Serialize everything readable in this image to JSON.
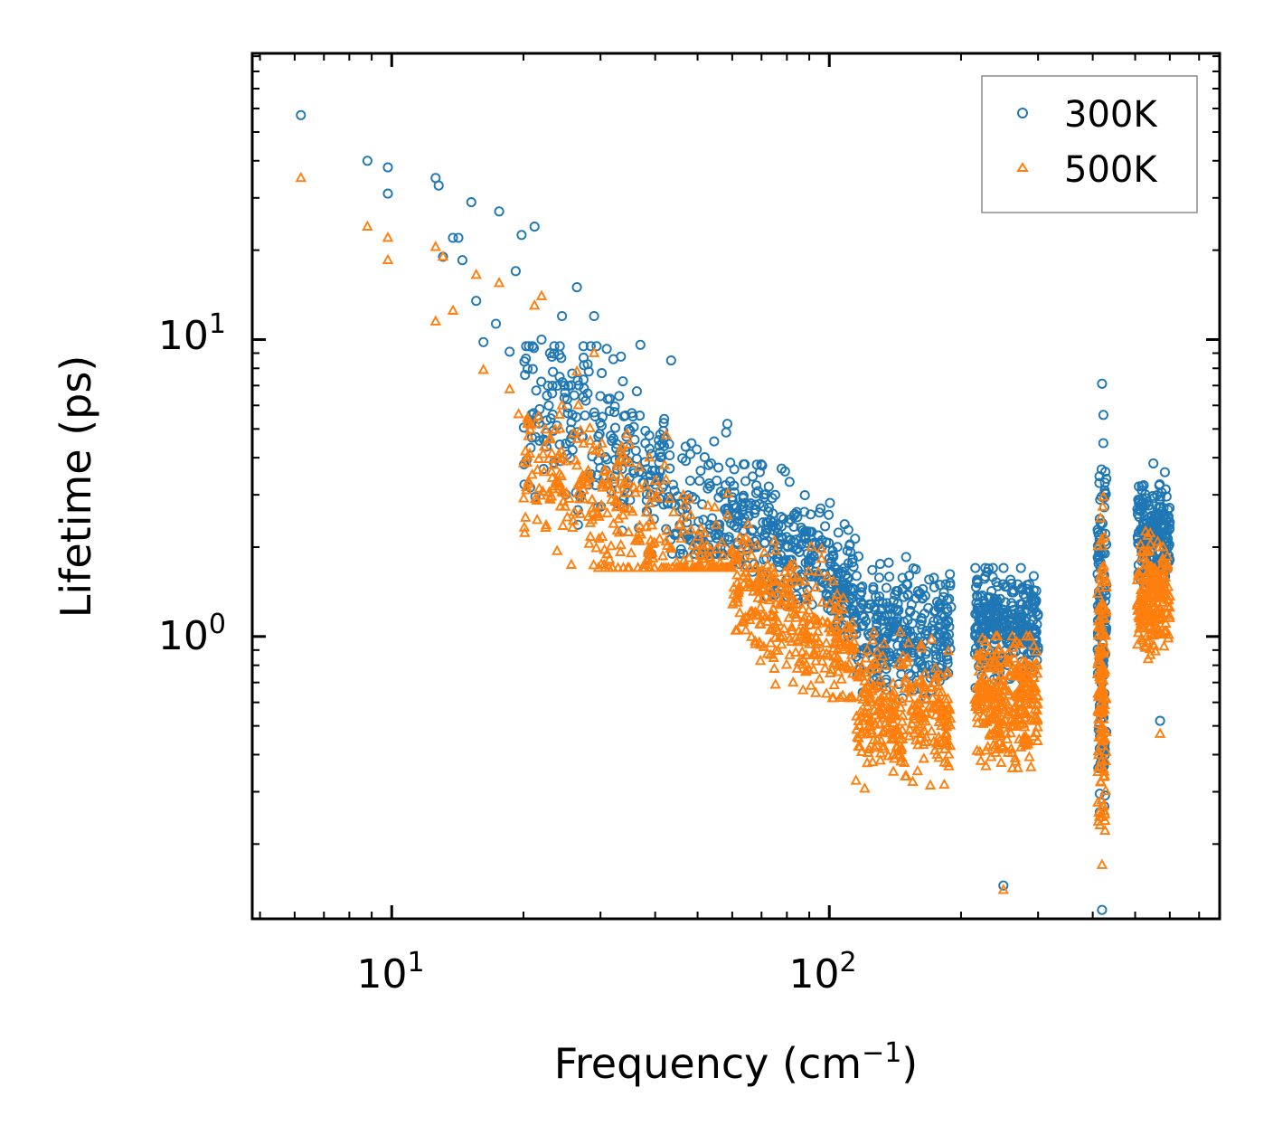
{
  "chart_data": {
    "type": "scatter",
    "xscale": "log",
    "yscale": "log",
    "xlim": [
      4.8,
      780
    ],
    "ylim": [
      0.112,
      92
    ],
    "xlabel": "Frequency (cm",
    "xlabel_sup": "−1",
    "xlabel_end": ")",
    "ylabel": "Lifetime (ps)",
    "x_ticks": [
      {
        "value": 10,
        "base": "10",
        "exp": "1"
      },
      {
        "value": 100,
        "base": "10",
        "exp": "2"
      }
    ],
    "y_ticks": [
      {
        "value": 1,
        "base": "10",
        "exp": "0"
      },
      {
        "value": 10,
        "base": "10",
        "exp": "1"
      }
    ],
    "legend": {
      "position": "top-right"
    },
    "series": [
      {
        "name": "300K",
        "marker": "circle",
        "color": "#1f77b4",
        "outliers": [
          [
            6.2,
            57
          ],
          [
            8.8,
            40
          ],
          [
            9.8,
            38
          ],
          [
            9.8,
            31
          ],
          [
            12.6,
            35
          ],
          [
            12.8,
            33
          ],
          [
            13.8,
            22
          ],
          [
            14.2,
            22
          ],
          [
            15.2,
            29
          ],
          [
            17.6,
            27
          ],
          [
            19.8,
            22.5
          ],
          [
            21.2,
            24
          ],
          [
            14.5,
            18.5
          ],
          [
            19.2,
            17
          ],
          [
            13.1,
            19
          ],
          [
            15.6,
            13.5
          ],
          [
            17.3,
            11.3
          ],
          [
            18.6,
            9.1
          ],
          [
            26.5,
            15
          ],
          [
            29.0,
            12
          ],
          [
            24.5,
            12
          ],
          [
            22.0,
            10
          ],
          [
            31.0,
            9.3
          ],
          [
            37.0,
            9.6
          ],
          [
            43.5,
            8.5
          ],
          [
            16.2,
            9.8
          ],
          [
            23.0,
            9.0
          ],
          [
            27.5,
            8.2
          ],
          [
            250,
            0.145
          ],
          [
            420,
            7.1
          ],
          [
            420,
            0.12
          ],
          [
            570,
            0.52
          ]
        ],
        "clusters": [
          {
            "x": [
              20,
              60
            ],
            "y": [
              1.9,
              9.5
            ],
            "slope": -0.9,
            "y_at_x0": 6.5,
            "spread": 0.28,
            "n": 340
          },
          {
            "x": [
              60,
              115
            ],
            "y": [
              1.0,
              3.8
            ],
            "slope": -0.9,
            "y_at_x0": 2.6,
            "spread": 0.2,
            "n": 320
          },
          {
            "x": [
              115,
              190
            ],
            "y": [
              0.62,
              1.9
            ],
            "center": 1.05,
            "spread": 0.2,
            "n": 300
          },
          {
            "x": [
              215,
              300
            ],
            "y": [
              0.62,
              1.7
            ],
            "center": 1.1,
            "spread": 0.18,
            "n": 300
          },
          {
            "x": [
              410,
              430
            ],
            "y": [
              0.12,
              7.1
            ],
            "center": 1.2,
            "spread": 0.55,
            "n": 140
          },
          {
            "x": [
              505,
              600
            ],
            "y": [
              0.9,
              4.2
            ],
            "center": 2.2,
            "spread": 0.17,
            "n": 200
          }
        ]
      },
      {
        "name": "500K",
        "marker": "triangle",
        "color": "#ff7f0e",
        "outliers": [
          [
            6.2,
            35
          ],
          [
            8.8,
            24
          ],
          [
            9.8,
            22
          ],
          [
            9.8,
            18.5
          ],
          [
            12.6,
            20.5
          ],
          [
            13.1,
            19
          ],
          [
            12.6,
            11.5
          ],
          [
            13.8,
            12.5
          ],
          [
            15.6,
            16.5
          ],
          [
            17.6,
            15.5
          ],
          [
            21.2,
            13
          ],
          [
            22.0,
            14
          ],
          [
            16.2,
            7.9
          ],
          [
            18.6,
            6.8
          ],
          [
            19.5,
            5.6
          ],
          [
            26.5,
            7.8
          ],
          [
            24.5,
            6.0
          ],
          [
            29.0,
            9.0
          ],
          [
            20.5,
            5.2
          ],
          [
            250,
            0.14
          ],
          [
            570,
            0.47
          ],
          [
            420,
            0.17
          ]
        ],
        "clusters": [
          {
            "x": [
              20,
              60
            ],
            "y": [
              1.7,
              6.5
            ],
            "slope": -0.9,
            "y_at_x0": 4.0,
            "spread": 0.26,
            "n": 340
          },
          {
            "x": [
              60,
              115
            ],
            "y": [
              0.62,
              2.5
            ],
            "slope": -0.9,
            "y_at_x0": 1.55,
            "spread": 0.2,
            "n": 320
          },
          {
            "x": [
              115,
              190
            ],
            "y": [
              0.3,
              1.1
            ],
            "center": 0.55,
            "spread": 0.22,
            "n": 300
          },
          {
            "x": [
              215,
              300
            ],
            "y": [
              0.36,
              1.0
            ],
            "center": 0.62,
            "spread": 0.2,
            "n": 300
          },
          {
            "x": [
              410,
              430
            ],
            "y": [
              0.15,
              4.1
            ],
            "center": 0.7,
            "spread": 0.55,
            "n": 140
          },
          {
            "x": [
              505,
              600
            ],
            "y": [
              0.62,
              2.6
            ],
            "center": 1.35,
            "spread": 0.18,
            "n": 200
          }
        ]
      }
    ]
  }
}
